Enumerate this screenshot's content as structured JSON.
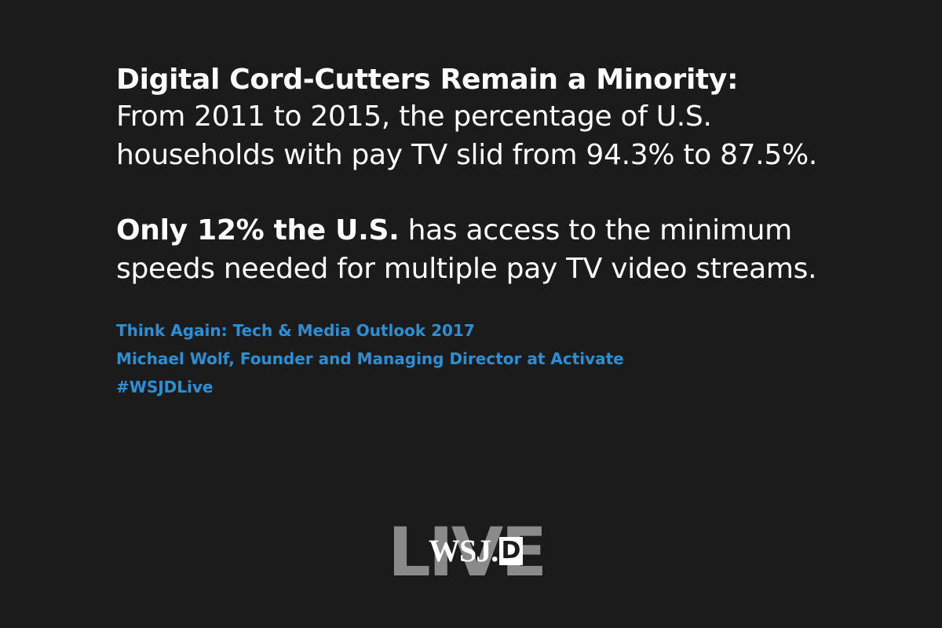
{
  "headline": "Digital Cord-Cutters Remain a Minority:",
  "paragraph_1": "From 2011 to 2015, the percentage of U.S. households with pay TV slid from 94.3% to 87.5%.",
  "paragraph_2": {
    "emphasis": "Only 12% the U.S.",
    "text": "has access to the minimum speeds needed for multiple pay TV video streams."
  },
  "credits": [
    "Think Again: Tech & Media Outlook 2017",
    "Michael Wolf, Founder and Managing Director at Activate",
    "#WSJDLive"
  ],
  "logo": {
    "background": "LIVE",
    "wordmark": "WSJ.",
    "badge": "D"
  }
}
